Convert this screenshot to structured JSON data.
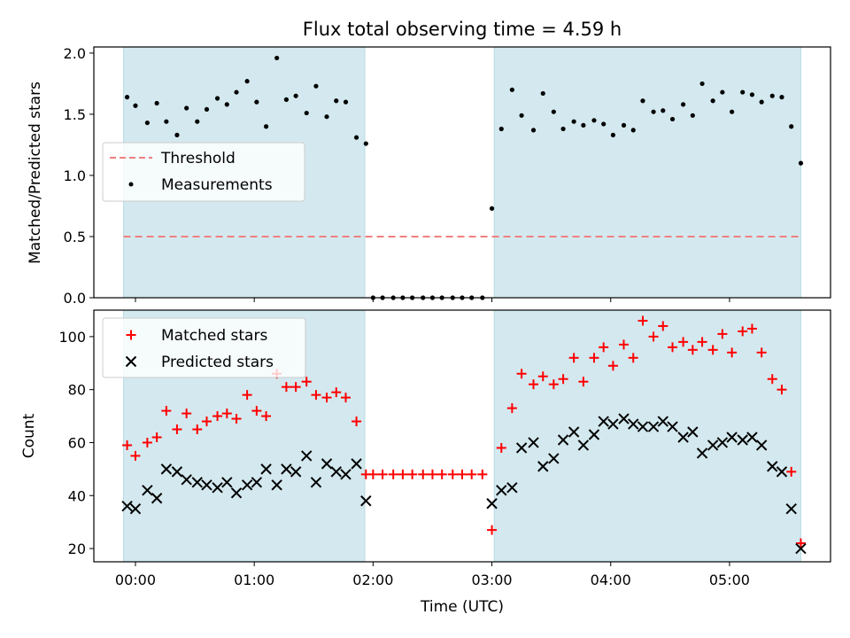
{
  "chart_data": [
    {
      "type": "scatter",
      "title": "Flux total observing time = 4.59 h",
      "xlabel": "",
      "ylabel": "Matched/Predicted stars",
      "ylim": [
        0,
        2.05
      ],
      "yticks": [
        "0.0",
        "0.5",
        "1.0",
        "1.5",
        "2.0"
      ],
      "grid": false,
      "legend_position": "center-left",
      "shaded_intervals_hours": [
        [
          -0.1,
          1.93
        ],
        [
          3.02,
          5.6
        ]
      ],
      "threshold": {
        "name": "Threshold",
        "value": 0.5,
        "color": "#f08080",
        "style": "dashed"
      },
      "series": [
        {
          "name": "Measurements",
          "color": "#000000",
          "marker": "dot",
          "points": [
            [
              -0.07,
              1.64
            ],
            [
              0.0,
              1.57
            ],
            [
              0.1,
              1.43
            ],
            [
              0.18,
              1.59
            ],
            [
              0.26,
              1.44
            ],
            [
              0.35,
              1.33
            ],
            [
              0.43,
              1.55
            ],
            [
              0.52,
              1.44
            ],
            [
              0.6,
              1.54
            ],
            [
              0.69,
              1.63
            ],
            [
              0.77,
              1.58
            ],
            [
              0.85,
              1.68
            ],
            [
              0.94,
              1.77
            ],
            [
              1.02,
              1.6
            ],
            [
              1.1,
              1.4
            ],
            [
              1.19,
              1.96
            ],
            [
              1.27,
              1.62
            ],
            [
              1.35,
              1.65
            ],
            [
              1.44,
              1.51
            ],
            [
              1.52,
              1.73
            ],
            [
              1.61,
              1.48
            ],
            [
              1.69,
              1.61
            ],
            [
              1.77,
              1.6
            ],
            [
              1.86,
              1.31
            ],
            [
              1.94,
              1.26
            ],
            [
              2.0,
              0.0
            ],
            [
              2.08,
              0.0
            ],
            [
              2.17,
              0.0
            ],
            [
              2.25,
              0.0
            ],
            [
              2.33,
              0.0
            ],
            [
              2.42,
              0.0
            ],
            [
              2.5,
              0.0
            ],
            [
              2.58,
              0.0
            ],
            [
              2.67,
              0.0
            ],
            [
              2.75,
              0.0
            ],
            [
              2.83,
              0.0
            ],
            [
              2.92,
              0.0
            ],
            [
              3.0,
              0.73
            ],
            [
              3.08,
              1.38
            ],
            [
              3.17,
              1.7
            ],
            [
              3.25,
              1.49
            ],
            [
              3.35,
              1.37
            ],
            [
              3.43,
              1.67
            ],
            [
              3.52,
              1.52
            ],
            [
              3.6,
              1.38
            ],
            [
              3.69,
              1.44
            ],
            [
              3.77,
              1.41
            ],
            [
              3.86,
              1.45
            ],
            [
              3.94,
              1.42
            ],
            [
              4.02,
              1.33
            ],
            [
              4.11,
              1.41
            ],
            [
              4.19,
              1.37
            ],
            [
              4.27,
              1.61
            ],
            [
              4.36,
              1.52
            ],
            [
              4.44,
              1.53
            ],
            [
              4.52,
              1.46
            ],
            [
              4.61,
              1.58
            ],
            [
              4.69,
              1.49
            ],
            [
              4.77,
              1.75
            ],
            [
              4.86,
              1.61
            ],
            [
              4.94,
              1.68
            ],
            [
              5.02,
              1.52
            ],
            [
              5.11,
              1.68
            ],
            [
              5.19,
              1.66
            ],
            [
              5.27,
              1.6
            ],
            [
              5.36,
              1.65
            ],
            [
              5.44,
              1.64
            ],
            [
              5.52,
              1.4
            ],
            [
              5.6,
              1.1
            ]
          ]
        }
      ]
    },
    {
      "type": "scatter",
      "title": "",
      "xlabel": "Time (UTC)",
      "ylabel": "Count",
      "xlim_hours": [
        -0.35,
        5.85
      ],
      "ylim": [
        15,
        110
      ],
      "xticks": [
        "00:00",
        "01:00",
        "02:00",
        "03:00",
        "04:00",
        "05:00"
      ],
      "yticks": [
        "20",
        "40",
        "60",
        "80",
        "100"
      ],
      "grid": false,
      "legend_position": "top-left",
      "shaded_intervals_hours": [
        [
          -0.1,
          1.93
        ],
        [
          3.02,
          5.6
        ]
      ],
      "series": [
        {
          "name": "Matched stars",
          "color": "#ff0000",
          "marker": "plus",
          "points": [
            [
              -0.07,
              59
            ],
            [
              0.0,
              55
            ],
            [
              0.1,
              60
            ],
            [
              0.18,
              62
            ],
            [
              0.26,
              72
            ],
            [
              0.35,
              65
            ],
            [
              0.43,
              71
            ],
            [
              0.52,
              65
            ],
            [
              0.6,
              68
            ],
            [
              0.69,
              70
            ],
            [
              0.77,
              71
            ],
            [
              0.85,
              69
            ],
            [
              0.94,
              78
            ],
            [
              1.02,
              72
            ],
            [
              1.1,
              70
            ],
            [
              1.19,
              86
            ],
            [
              1.27,
              81
            ],
            [
              1.35,
              81
            ],
            [
              1.44,
              83
            ],
            [
              1.52,
              78
            ],
            [
              1.61,
              77
            ],
            [
              1.69,
              79
            ],
            [
              1.77,
              77
            ],
            [
              1.86,
              68
            ],
            [
              1.94,
              48
            ],
            [
              2.0,
              48
            ],
            [
              2.08,
              48
            ],
            [
              2.17,
              48
            ],
            [
              2.25,
              48
            ],
            [
              2.33,
              48
            ],
            [
              2.42,
              48
            ],
            [
              2.5,
              48
            ],
            [
              2.58,
              48
            ],
            [
              2.67,
              48
            ],
            [
              2.75,
              48
            ],
            [
              2.83,
              48
            ],
            [
              2.92,
              48
            ],
            [
              3.0,
              27
            ],
            [
              3.08,
              58
            ],
            [
              3.17,
              73
            ],
            [
              3.25,
              86
            ],
            [
              3.35,
              82
            ],
            [
              3.43,
              85
            ],
            [
              3.52,
              82
            ],
            [
              3.6,
              84
            ],
            [
              3.69,
              92
            ],
            [
              3.77,
              83
            ],
            [
              3.86,
              92
            ],
            [
              3.94,
              96
            ],
            [
              4.02,
              89
            ],
            [
              4.11,
              97
            ],
            [
              4.19,
              92
            ],
            [
              4.27,
              106
            ],
            [
              4.36,
              100
            ],
            [
              4.44,
              104
            ],
            [
              4.52,
              96
            ],
            [
              4.61,
              98
            ],
            [
              4.69,
              95
            ],
            [
              4.77,
              98
            ],
            [
              4.86,
              95
            ],
            [
              4.94,
              101
            ],
            [
              5.02,
              94
            ],
            [
              5.11,
              102
            ],
            [
              5.19,
              103
            ],
            [
              5.27,
              94
            ],
            [
              5.36,
              84
            ],
            [
              5.44,
              80
            ],
            [
              5.52,
              49
            ],
            [
              5.6,
              22
            ]
          ]
        },
        {
          "name": "Predicted stars",
          "color": "#000000",
          "marker": "x",
          "points": [
            [
              -0.07,
              36
            ],
            [
              0.0,
              35
            ],
            [
              0.1,
              42
            ],
            [
              0.18,
              39
            ],
            [
              0.26,
              50
            ],
            [
              0.35,
              49
            ],
            [
              0.43,
              46
            ],
            [
              0.52,
              45
            ],
            [
              0.6,
              44
            ],
            [
              0.69,
              43
            ],
            [
              0.77,
              45
            ],
            [
              0.85,
              41
            ],
            [
              0.94,
              44
            ],
            [
              1.02,
              45
            ],
            [
              1.1,
              50
            ],
            [
              1.19,
              44
            ],
            [
              1.27,
              50
            ],
            [
              1.35,
              49
            ],
            [
              1.44,
              55
            ],
            [
              1.52,
              45
            ],
            [
              1.61,
              52
            ],
            [
              1.69,
              49
            ],
            [
              1.77,
              48
            ],
            [
              1.86,
              52
            ],
            [
              1.94,
              38
            ],
            [
              3.0,
              37
            ],
            [
              3.08,
              42
            ],
            [
              3.17,
              43
            ],
            [
              3.25,
              58
            ],
            [
              3.35,
              60
            ],
            [
              3.43,
              51
            ],
            [
              3.52,
              54
            ],
            [
              3.6,
              61
            ],
            [
              3.69,
              64
            ],
            [
              3.77,
              59
            ],
            [
              3.86,
              63
            ],
            [
              3.94,
              68
            ],
            [
              4.02,
              67
            ],
            [
              4.11,
              69
            ],
            [
              4.19,
              67
            ],
            [
              4.27,
              66
            ],
            [
              4.36,
              66
            ],
            [
              4.44,
              68
            ],
            [
              4.52,
              66
            ],
            [
              4.61,
              62
            ],
            [
              4.69,
              64
            ],
            [
              4.77,
              56
            ],
            [
              4.86,
              59
            ],
            [
              4.94,
              60
            ],
            [
              5.02,
              62
            ],
            [
              5.11,
              61
            ],
            [
              5.19,
              62
            ],
            [
              5.27,
              59
            ],
            [
              5.36,
              51
            ],
            [
              5.44,
              49
            ],
            [
              5.52,
              35
            ],
            [
              5.6,
              20
            ]
          ]
        }
      ]
    }
  ],
  "colors": {
    "shade": "#d3e9ef",
    "threshold": "#f08080",
    "matched": "#ff0000",
    "predicted": "#000000"
  }
}
